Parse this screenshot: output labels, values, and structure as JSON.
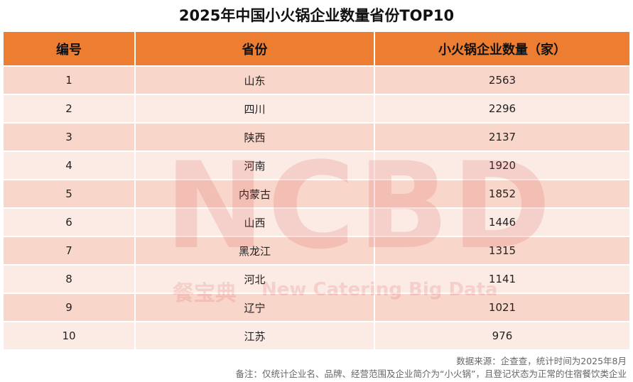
{
  "header": {
    "title": "2025年中国小火锅企业数量省份TOP10"
  },
  "table": {
    "columns": [
      "编号",
      "省份",
      "小火锅企业数量（家）"
    ],
    "rows": [
      [
        1,
        "山东",
        2563
      ],
      [
        2,
        "四川",
        2296
      ],
      [
        3,
        "陕西",
        2137
      ],
      [
        4,
        "河南",
        1920
      ],
      [
        5,
        "内蒙古",
        1852
      ],
      [
        6,
        "山西",
        1446
      ],
      [
        7,
        "黑龙江",
        1315
      ],
      [
        8,
        "河北",
        1141
      ],
      [
        9,
        "辽宁",
        1021
      ],
      [
        10,
        "江苏",
        976
      ]
    ]
  },
  "watermark": {
    "logo": "NCBD",
    "brand": "餐宝典",
    "tagline": "New Catering Big Data"
  },
  "footer": {
    "source": "数据来源：企查查，统计时间为2025年8月",
    "note": "备注：仅统计企业名、品牌、经营范围及企业简介为“小火锅”，且登记状态为正常的住宿餐饮类企业"
  }
}
